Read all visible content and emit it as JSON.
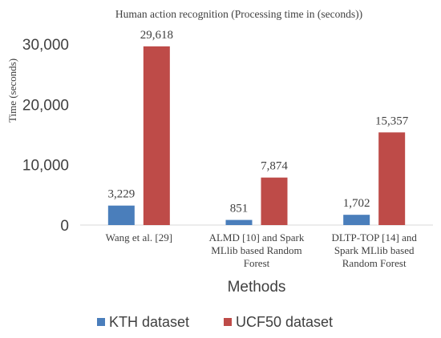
{
  "chart_data": {
    "type": "bar",
    "title": "Human action recognition (Processing time in (seconds))",
    "xlabel": "Methods",
    "ylabel": "Time (seconds)",
    "categories": [
      [
        "Wang et al. [29]"
      ],
      [
        "ALMD [10] and Spark",
        "MLlib based Random",
        "Forest"
      ],
      [
        "DLTP-TOP [14] and",
        "Spark MLlib based",
        "Random Forest"
      ]
    ],
    "series": [
      {
        "name": "KTH dataset",
        "color": "#4a7ebb",
        "values": [
          3229,
          851,
          1702
        ],
        "labels": [
          "3,229",
          "851",
          "1,702"
        ]
      },
      {
        "name": "UCF50 dataset",
        "color": "#be4b48",
        "values": [
          29618,
          7874,
          15357
        ],
        "labels": [
          "29,618",
          "7,874",
          "15,357"
        ]
      }
    ],
    "ylim": [
      0,
      30000
    ],
    "yticks": [
      0,
      10000,
      20000,
      30000
    ],
    "ytick_labels": [
      "0",
      "10,000",
      "20,000",
      "30,000"
    ],
    "grid": false,
    "legend_position": "bottom"
  }
}
